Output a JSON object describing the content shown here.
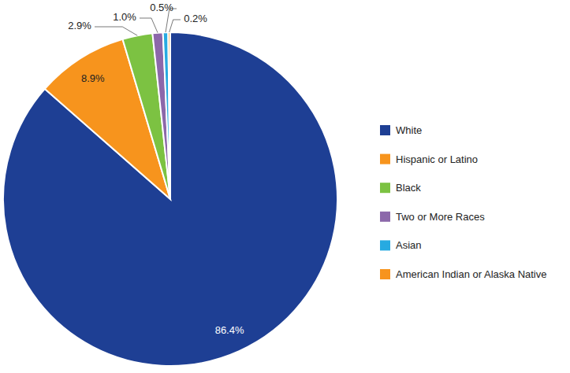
{
  "chart_data": {
    "type": "pie",
    "categories": [
      "White",
      "Hispanic or Latino",
      "Black",
      "Two or More Races",
      "Asian",
      "American Indian or Alaska Native"
    ],
    "values": [
      86.4,
      8.9,
      2.9,
      1.0,
      0.5,
      0.2
    ],
    "value_labels": [
      "86.4%",
      "8.9%",
      "2.9%",
      "1.0%",
      "0.5%",
      "0.2%"
    ],
    "colors": [
      "#1e3f94",
      "#f7941d",
      "#7cc242",
      "#8c68aa",
      "#27aae1",
      "#f7941d"
    ],
    "data_labels": true,
    "legend": "right"
  }
}
